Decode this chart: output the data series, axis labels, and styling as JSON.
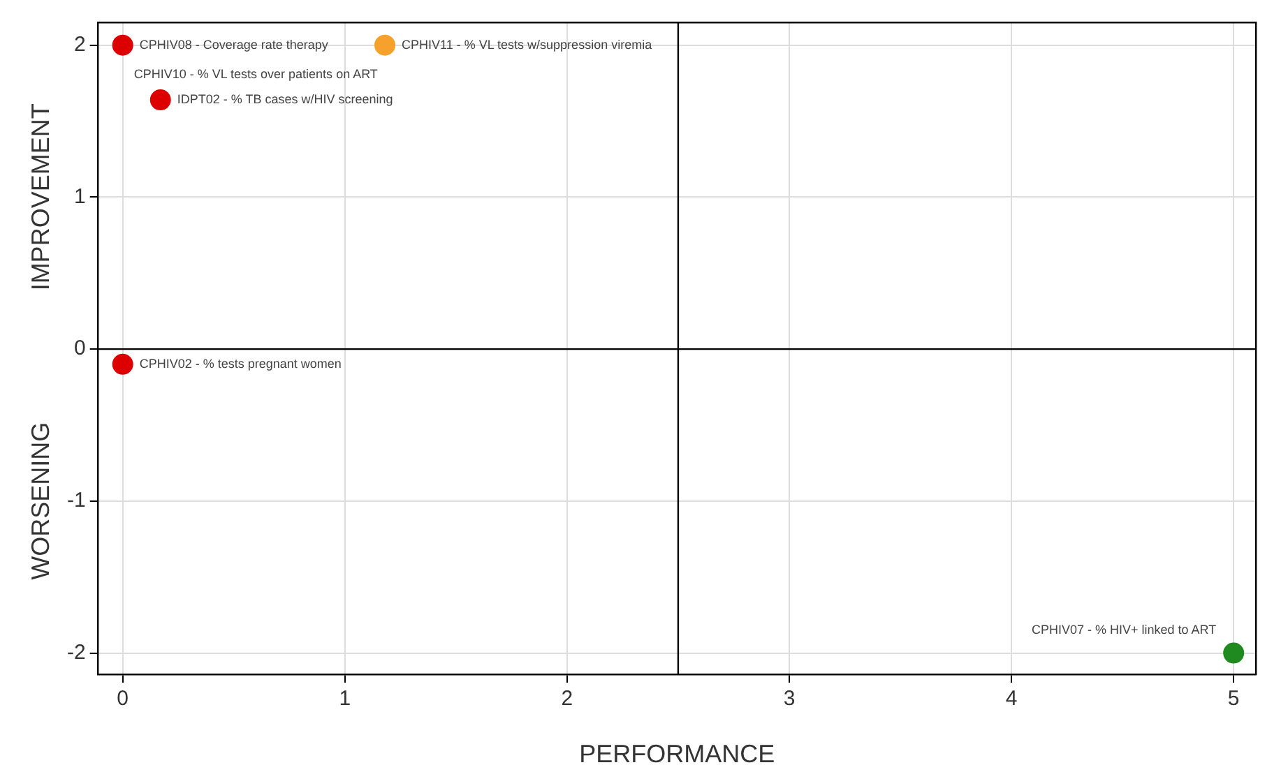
{
  "chart_data": {
    "type": "scatter",
    "xlabel": "PERFORMANCE",
    "ylabel": "IMPROVEMENT",
    "x": [
      0,
      1.18,
      0.17,
      0,
      5
    ],
    "values": [
      2,
      2,
      1.64,
      -0.1,
      -2
    ],
    "colors": [
      "#dd0000",
      "#f6a12c",
      "#dd0000",
      "#dd0000",
      "#1f8a1f"
    ],
    "xlim": [
      -0.11,
      5.1
    ],
    "ylim": [
      -2.14,
      2.15
    ],
    "xticks": [
      0,
      1,
      2,
      3,
      4,
      5
    ],
    "yticks": [
      -2,
      -1,
      0,
      1,
      2
    ],
    "grid": true,
    "legend": false,
    "marker": "circle",
    "ref_lines": [
      {
        "axis": "x",
        "value": 2.5,
        "color": "#000000"
      },
      {
        "axis": "y",
        "value": 0,
        "color": "#000000"
      }
    ],
    "annotations": [
      {
        "text": "CPHIV08 - Coverage rate therapy",
        "x": 0,
        "y": 2
      },
      {
        "text": "CPHIV11 - % VL tests w/suppression viremia",
        "x": 1.18,
        "y": 2
      },
      {
        "text": "CPHIV10 - % VL tests over patients on ART",
        "x": 0,
        "y": 2
      },
      {
        "text": "IDPT02 - % TB cases w/HIV screening",
        "x": 0.17,
        "y": 1.64
      },
      {
        "text": "CPHIV02 - % tests pregnant women",
        "x": 0,
        "y": -0.1
      },
      {
        "text": "CPHIV07 - % HIV+ linked to ART",
        "x": 5,
        "y": -2
      },
      "WORSENING"
    ]
  }
}
